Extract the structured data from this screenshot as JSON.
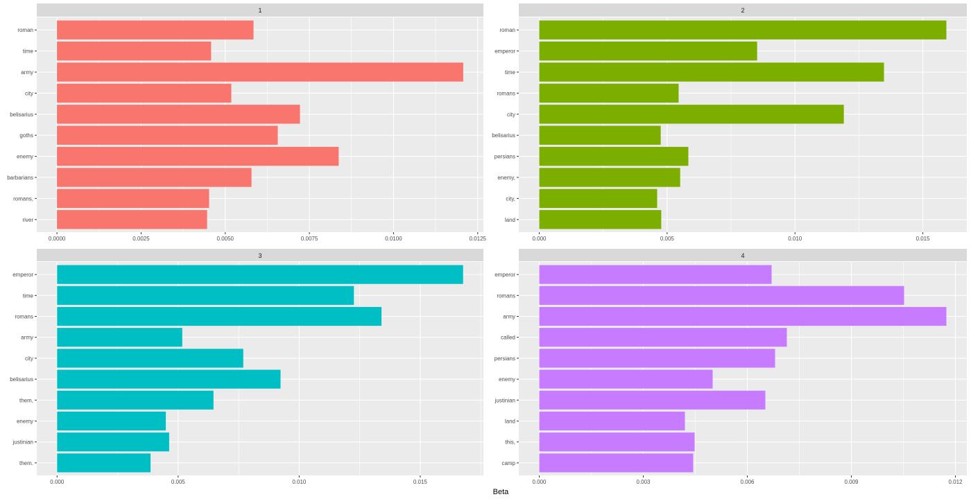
{
  "chart_data": {
    "type": "bar",
    "orientation": "horizontal",
    "xlabel": "Beta",
    "ylabel": "",
    "grid": true,
    "facets": [
      {
        "strip": "1",
        "color": "#F8766D",
        "xlim": [
          -0.0006,
          0.01267
        ],
        "ticks": [
          0,
          0.0025,
          0.005,
          0.0075,
          0.01,
          0.0125
        ],
        "tick_labels": [
          "0.0000",
          "0.0025",
          "0.0050",
          "0.0075",
          "0.0100",
          "0.0125"
        ],
        "categories": [
          "roman",
          "time",
          "army",
          "city",
          "belisarius",
          "goths",
          "enemy",
          "barbarians",
          "romans,",
          "river"
        ],
        "values": [
          0.00584,
          0.00458,
          0.01207,
          0.00518,
          0.00722,
          0.00656,
          0.00837,
          0.00578,
          0.00452,
          0.00446
        ]
      },
      {
        "strip": "2",
        "color": "#7CAE00",
        "xlim": [
          -0.0008,
          0.01672
        ],
        "ticks": [
          0,
          0.005,
          0.01,
          0.015
        ],
        "tick_labels": [
          "0.000",
          "0.005",
          "0.010",
          "0.015"
        ],
        "categories": [
          "roman",
          "emperor",
          "time",
          "romans",
          "city",
          "belisarius",
          "persians",
          "enemy,",
          "city,",
          "land"
        ],
        "values": [
          0.01592,
          0.00852,
          0.01348,
          0.00545,
          0.01191,
          0.00475,
          0.00583,
          0.00551,
          0.00461,
          0.00477
        ]
      },
      {
        "strip": "3",
        "color": "#00BFC4",
        "xlim": [
          -0.00084,
          0.01761
        ],
        "ticks": [
          0,
          0.005,
          0.01,
          0.015
        ],
        "tick_labels": [
          "0.000",
          "0.005",
          "0.010",
          "0.015"
        ],
        "categories": [
          "emperor",
          "time",
          "romans",
          "army",
          "city",
          "belisarius",
          "them,",
          "enemy",
          "justinian",
          "them."
        ],
        "values": [
          0.01677,
          0.01226,
          0.0134,
          0.00517,
          0.00769,
          0.00923,
          0.00646,
          0.00449,
          0.00463,
          0.00386
        ]
      },
      {
        "strip": "4",
        "color": "#C77CFF",
        "xlim": [
          -0.00059,
          0.01233
        ],
        "ticks": [
          0,
          0.003,
          0.006,
          0.009,
          0.012
        ],
        "tick_labels": [
          "0.000",
          "0.003",
          "0.006",
          "0.009",
          "0.012"
        ],
        "categories": [
          "emperor",
          "romans",
          "army",
          "called",
          "persians",
          "enemy",
          "justinian",
          "land",
          "this,",
          "camp"
        ],
        "values": [
          0.0067,
          0.01052,
          0.01174,
          0.00714,
          0.0068,
          0.005,
          0.00652,
          0.0042,
          0.00448,
          0.00444
        ]
      }
    ]
  }
}
